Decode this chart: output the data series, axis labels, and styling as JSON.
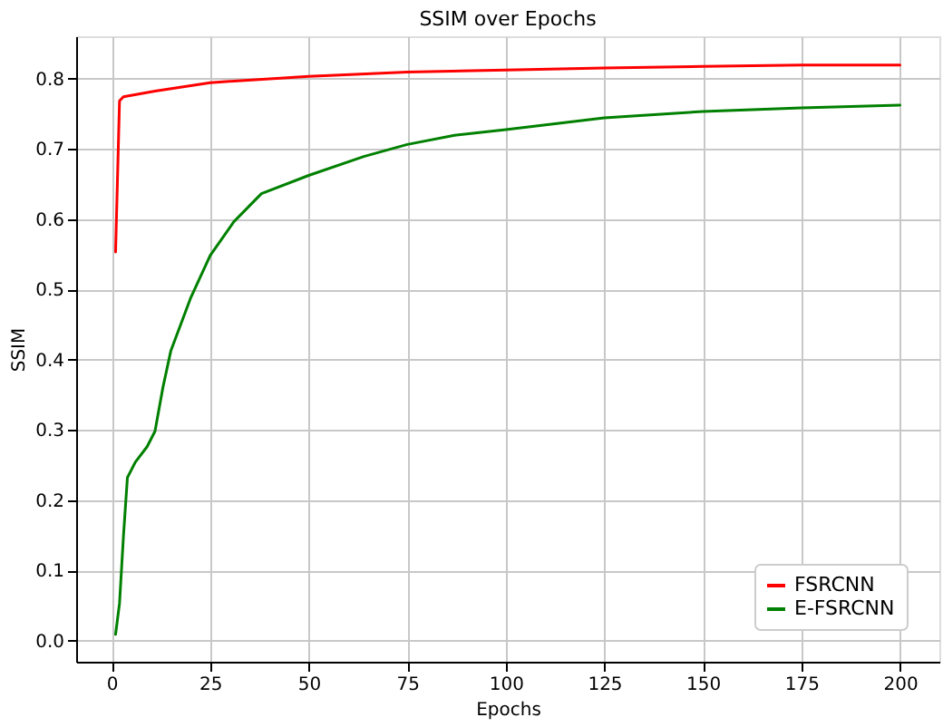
{
  "chart_data": {
    "type": "line",
    "title": "SSIM over Epochs",
    "xlabel": "Epochs",
    "ylabel": "SSIM",
    "xlim": [
      -9,
      210
    ],
    "xticks": [
      0,
      25,
      50,
      75,
      100,
      125,
      150,
      175,
      200
    ],
    "ylim": [
      -0.03,
      0.86
    ],
    "yticks": [
      {
        "value": 0,
        "label": "0.0"
      },
      0.1,
      0.2,
      0.3,
      0.4,
      0.5,
      0.6,
      0.7,
      0.8
    ],
    "grid": true,
    "legend": "bottom right",
    "line_style": "solid",
    "marker": "none",
    "series": [
      {
        "name": "FSRCNN",
        "color": "#ff0000",
        "x": [
          1,
          2,
          3,
          11,
          25,
          50,
          75,
          100,
          125,
          150,
          175,
          200
        ],
        "values": [
          0.553,
          0.768,
          0.774,
          0.782,
          0.794,
          0.803,
          0.809,
          0.812,
          0.815,
          0.817,
          0.819,
          0.819
        ]
      },
      {
        "name": "E-FSRCNN",
        "color": "#008000",
        "x": [
          1,
          2,
          3,
          4,
          6,
          9,
          11,
          13,
          15,
          20,
          25,
          31,
          38,
          50,
          64,
          75,
          87,
          100,
          125,
          150,
          175,
          200
        ],
        "values": [
          0.009,
          0.053,
          0.149,
          0.232,
          0.254,
          0.276,
          0.298,
          0.36,
          0.412,
          0.487,
          0.548,
          0.596,
          0.636,
          0.662,
          0.689,
          0.706,
          0.719,
          0.727,
          0.744,
          0.753,
          0.758,
          0.762
        ]
      }
    ]
  }
}
